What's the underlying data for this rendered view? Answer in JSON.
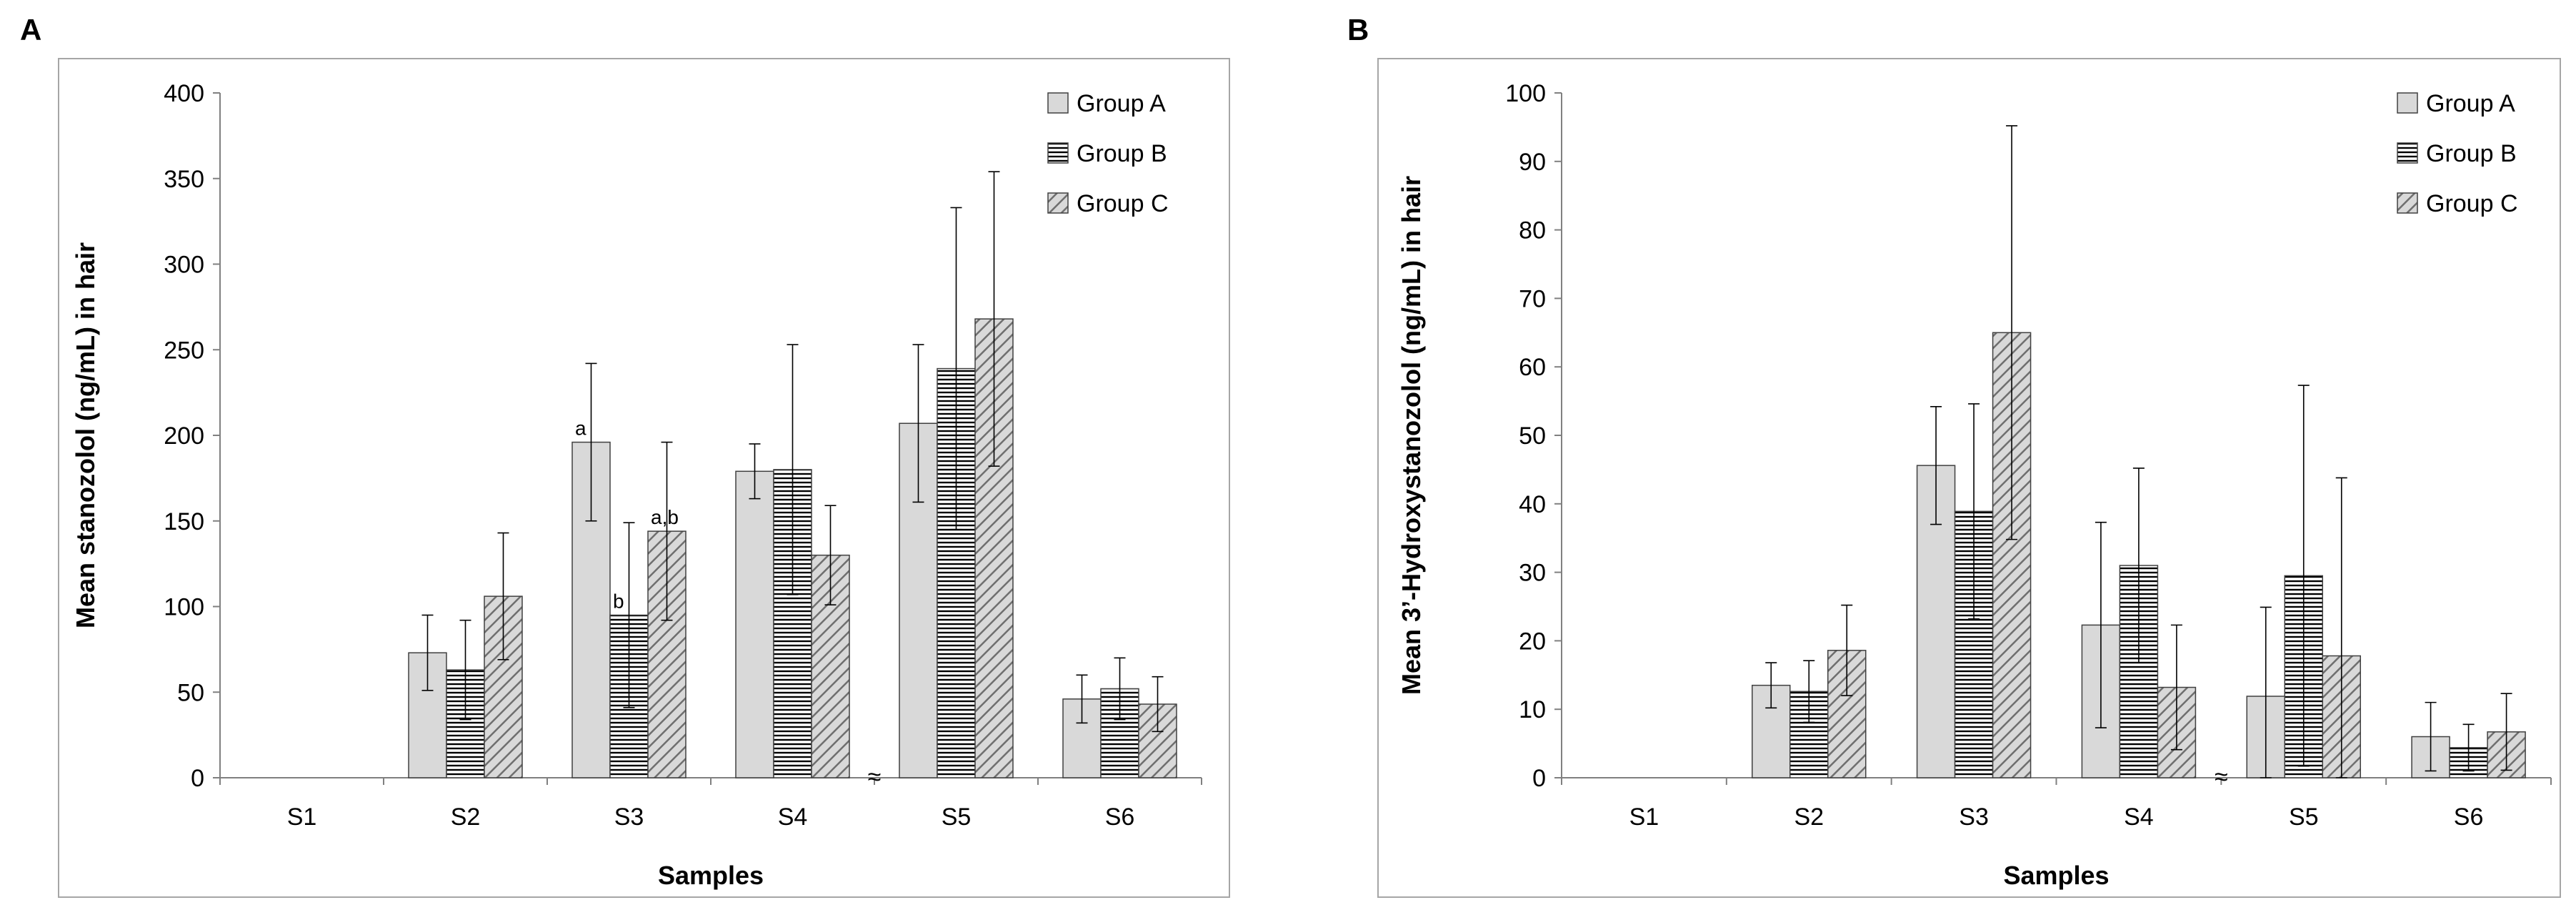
{
  "chart_data": [
    {
      "panel": "A",
      "type": "bar",
      "title": "",
      "xlabel": "Samples",
      "ylabel": "Mean stanozolol (ng/mL) in hair",
      "ylim": [
        0,
        400
      ],
      "yticks": [
        0,
        50,
        100,
        150,
        200,
        250,
        300,
        350,
        400
      ],
      "categories": [
        "S1",
        "S2",
        "S3",
        "S4",
        "S5",
        "S6"
      ],
      "axis_break": "≈",
      "legend_position": "top-right",
      "grid": false,
      "series": [
        {
          "name": "Group A",
          "pattern": "solid-gray",
          "values": [
            0,
            73,
            196,
            179,
            207,
            46
          ],
          "errors": [
            0,
            22,
            46,
            16,
            46,
            14
          ]
        },
        {
          "name": "Group B",
          "pattern": "horizontal-lines",
          "values": [
            0,
            63,
            95,
            180,
            239,
            52
          ],
          "errors": [
            0,
            29,
            54,
            73,
            94,
            18
          ]
        },
        {
          "name": "Group C",
          "pattern": "diagonal-lines",
          "values": [
            0,
            106,
            144,
            130,
            268,
            43
          ],
          "errors": [
            0,
            37,
            52,
            29,
            86,
            16
          ]
        }
      ],
      "annotations": [
        {
          "category": "S3",
          "series": "Group A",
          "text": "a"
        },
        {
          "category": "S3",
          "series": "Group B",
          "text": "b"
        },
        {
          "category": "S3",
          "series": "Group C",
          "text": "a,b"
        }
      ]
    },
    {
      "panel": "B",
      "type": "bar",
      "title": "",
      "xlabel": "Samples",
      "ylabel": "Mean 3’-Hydroxystanozolol (ng/mL) in hair",
      "ylim": [
        0,
        100
      ],
      "yticks": [
        0,
        10,
        20,
        30,
        40,
        50,
        60,
        70,
        80,
        90,
        100
      ],
      "categories": [
        "S1",
        "S2",
        "S3",
        "S4",
        "S5",
        "S6"
      ],
      "axis_break": "≈",
      "legend_position": "top-right",
      "grid": false,
      "series": [
        {
          "name": "Group A",
          "pattern": "solid-gray",
          "values": [
            0,
            13.5,
            45.6,
            22.3,
            11.9,
            6.0
          ],
          "errors": [
            0,
            3.3,
            8.6,
            15.0,
            13.0,
            5.0
          ]
        },
        {
          "name": "Group B",
          "pattern": "horizontal-lines",
          "values": [
            0,
            12.6,
            38.9,
            31.0,
            29.5,
            4.4
          ],
          "errors": [
            0,
            4.5,
            15.7,
            14.2,
            27.8,
            3.4
          ]
        },
        {
          "name": "Group C",
          "pattern": "diagonal-lines",
          "values": [
            0,
            18.6,
            65.0,
            13.2,
            17.8,
            6.7
          ],
          "errors": [
            0,
            6.6,
            30.2,
            9.1,
            26.0,
            5.6
          ]
        }
      ],
      "annotations": []
    }
  ]
}
